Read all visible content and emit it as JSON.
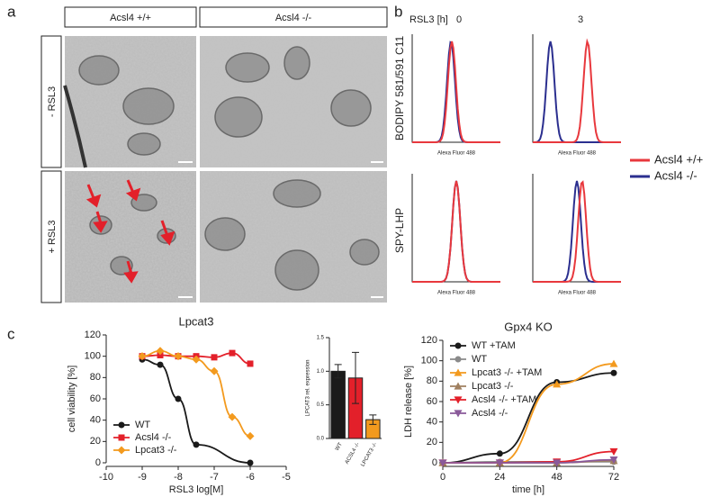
{
  "panel_labels": [
    "a",
    "b",
    "c"
  ],
  "panel_a": {
    "columns": [
      "Acsl4 +/+",
      "Acsl4 -/-"
    ],
    "rows": [
      "- RSL3",
      "+ RSL3"
    ]
  },
  "panel_b": {
    "time_label": "RSL3 [h]",
    "times": [
      "0",
      "3"
    ],
    "rows": [
      "BODIPY 581/591 C11",
      "SPY-LHP"
    ],
    "x_label": "Alexa Fluor 488",
    "legend": [
      {
        "name": "Acsl4 +/+",
        "color": "#e8383d"
      },
      {
        "name": "Acsl4 -/-",
        "color": "#2b2f8f"
      }
    ]
  },
  "chart_data": [
    {
      "type": "line",
      "title": "Lpcat3",
      "x_label": "RSL3 log[M]",
      "y_label": "cell viability [%]",
      "xlim": [
        -10,
        -5
      ],
      "xticks": [
        -10,
        -9,
        -8,
        -7,
        -6,
        -5
      ],
      "ylim": [
        0,
        120
      ],
      "yticks": [
        0,
        20,
        40,
        60,
        80,
        100,
        120
      ],
      "legend": "lower left",
      "series": [
        {
          "name": "WT",
          "color": "#1a1a1a",
          "marker": "circle",
          "x": [
            -9,
            -8.5,
            -8,
            -7.5,
            -6
          ],
          "values": [
            97,
            92,
            60,
            17,
            0
          ]
        },
        {
          "name": "Acsl4 -/-",
          "color": "#e3202a",
          "marker": "square",
          "x": [
            -9,
            -8.5,
            -8,
            -7.5,
            -7,
            -6.5,
            -6
          ],
          "values": [
            100,
            101,
            100,
            100,
            99,
            103,
            93
          ]
        },
        {
          "name": "Lpcat3 -/-",
          "color": "#f39a1e",
          "marker": "diamond",
          "x": [
            -9,
            -8.5,
            -8,
            -7.5,
            -7,
            -6.5,
            -6
          ],
          "values": [
            100,
            105,
            100,
            97,
            86,
            43,
            25
          ]
        }
      ]
    },
    {
      "type": "bar",
      "y_label": "LPCAT3 rel. expression",
      "categories": [
        "WT",
        "ACSL4 -/-",
        "LPCAT3 -/-"
      ],
      "values": [
        1.0,
        0.9,
        0.28
      ],
      "errors": [
        0.1,
        0.38,
        0.07
      ],
      "colors": [
        "#1a1a1a",
        "#e3202a",
        "#f39a1e"
      ],
      "ylim": [
        0,
        1.5
      ],
      "yticks": [
        {
          "value": 0,
          "label": "0.0"
        },
        {
          "value": 0.5,
          "label": "0.5"
        },
        {
          "value": 1,
          "label": "1.0"
        },
        {
          "value": 1.5,
          "label": "1.5"
        }
      ]
    },
    {
      "type": "line",
      "title": "Gpx4 KO",
      "x_label": "time [h]",
      "y_label": "LDH release [%]",
      "xlim": [
        0,
        72
      ],
      "xticks": [
        0,
        24,
        48,
        72
      ],
      "ylim": [
        0,
        120
      ],
      "yticks": [
        0,
        20,
        40,
        60,
        80,
        100,
        120
      ],
      "legend": "upper left",
      "series": [
        {
          "name": "WT +TAM",
          "color": "#1a1a1a",
          "marker": "circle",
          "x": [
            0,
            24,
            48,
            72
          ],
          "values": [
            0,
            9,
            79,
            88
          ]
        },
        {
          "name": "WT",
          "color": "#8a8a8a",
          "marker": "circle",
          "x": [
            0,
            24,
            48,
            72
          ],
          "values": [
            0,
            1,
            1,
            1
          ]
        },
        {
          "name": "Lpcat3 -/- +TAM",
          "color": "#f39a1e",
          "marker": "triangle",
          "x": [
            0,
            24,
            48,
            72
          ],
          "values": [
            0,
            0,
            77,
            97
          ]
        },
        {
          "name": "Lpcat3 -/-",
          "color": "#a08060",
          "marker": "triangle",
          "x": [
            0,
            24,
            48,
            72
          ],
          "values": [
            0,
            0,
            0,
            2
          ]
        },
        {
          "name": "Acsl4 -/- +TAM",
          "color": "#e3202a",
          "marker": "triangledown",
          "x": [
            0,
            24,
            48,
            72
          ],
          "values": [
            0,
            0,
            1,
            11
          ]
        },
        {
          "name": "Acsl4 -/-",
          "color": "#8a5a9a",
          "marker": "triangledown",
          "x": [
            0,
            24,
            48,
            72
          ],
          "values": [
            0,
            0,
            0,
            3
          ]
        }
      ]
    }
  ]
}
